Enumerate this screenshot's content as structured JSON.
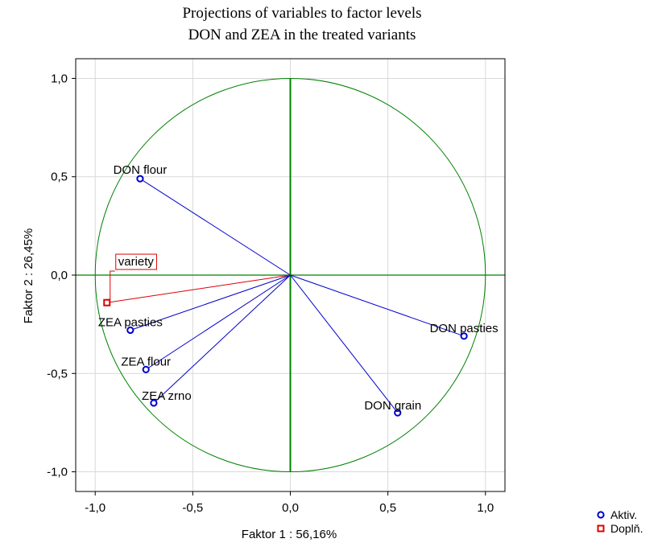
{
  "chart_data": {
    "type": "scatter",
    "title_lines": [
      "Projections of variables to factor levels",
      "DON and ZEA in the treated variants"
    ],
    "xlabel": "Faktor 1 : 56,16%",
    "ylabel": "Faktor 2 : 26,45%",
    "xlim": [
      -1.1,
      1.1
    ],
    "ylim": [
      -1.1,
      1.1
    ],
    "x_ticks": [
      -1.0,
      -0.5,
      0.0,
      0.5,
      1.0
    ],
    "x_tick_labels": [
      "-1,0",
      "-0,5",
      "0,0",
      "0,5",
      "1,0"
    ],
    "y_ticks": [
      1.0,
      0.5,
      0.0,
      -0.5,
      -1.0
    ],
    "y_tick_labels": [
      "1,0",
      "0,5",
      "0,0",
      "-0,5",
      "-1,0"
    ],
    "grid": true,
    "unit_circle": true,
    "series": [
      {
        "name": "Aktiv.",
        "marker": "circle",
        "color": "#0000cc",
        "points": [
          {
            "label": "DON flour",
            "x": -0.77,
            "y": 0.49
          },
          {
            "label": "ZEA pasties",
            "x": -0.82,
            "y": -0.28
          },
          {
            "label": "ZEA flour",
            "x": -0.74,
            "y": -0.48
          },
          {
            "label": "ZEA zrno",
            "x": -0.7,
            "y": -0.65
          },
          {
            "label": "DON pasties",
            "x": 0.89,
            "y": -0.31
          },
          {
            "label": "DON grain",
            "x": 0.55,
            "y": -0.7
          }
        ]
      },
      {
        "name": "Doplň.",
        "marker": "square",
        "color": "#dd0000",
        "points": [
          {
            "label": "variety",
            "x": -0.94,
            "y": -0.14
          }
        ]
      }
    ],
    "legend_position": "bottom-right",
    "colors": {
      "circle": "#008000",
      "axes": "#008000",
      "grid": "#d9d9d9",
      "frame": "#000000"
    }
  }
}
